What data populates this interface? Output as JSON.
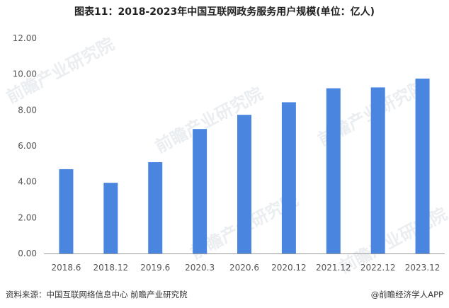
{
  "title": "图表11：2018-2023年中国互联网政务服务用户规模(单位：亿人)",
  "footer": {
    "source": "资料来源：中国互联网络信息中心 前瞻产业研究院",
    "brand": "@前瞻经济学人APP"
  },
  "watermark": "前瞻产业研究院",
  "colors": {
    "bar": "#4a86e0",
    "axis": "#999999",
    "grid": "none"
  },
  "chart_data": {
    "type": "bar",
    "categories": [
      "2018.6",
      "2018.12",
      "2019.6",
      "2020.3",
      "2020.6",
      "2020.12",
      "2021.12",
      "2022.12",
      "2023.12"
    ],
    "values": [
      4.7,
      3.94,
      5.09,
      6.94,
      7.73,
      8.43,
      9.21,
      9.26,
      9.75
    ],
    "yticks": [
      "0.00",
      "2.00",
      "4.00",
      "6.00",
      "8.00",
      "10.00",
      "12.00"
    ],
    "ylim": [
      0,
      12
    ],
    "grid": false,
    "legend": "none"
  }
}
